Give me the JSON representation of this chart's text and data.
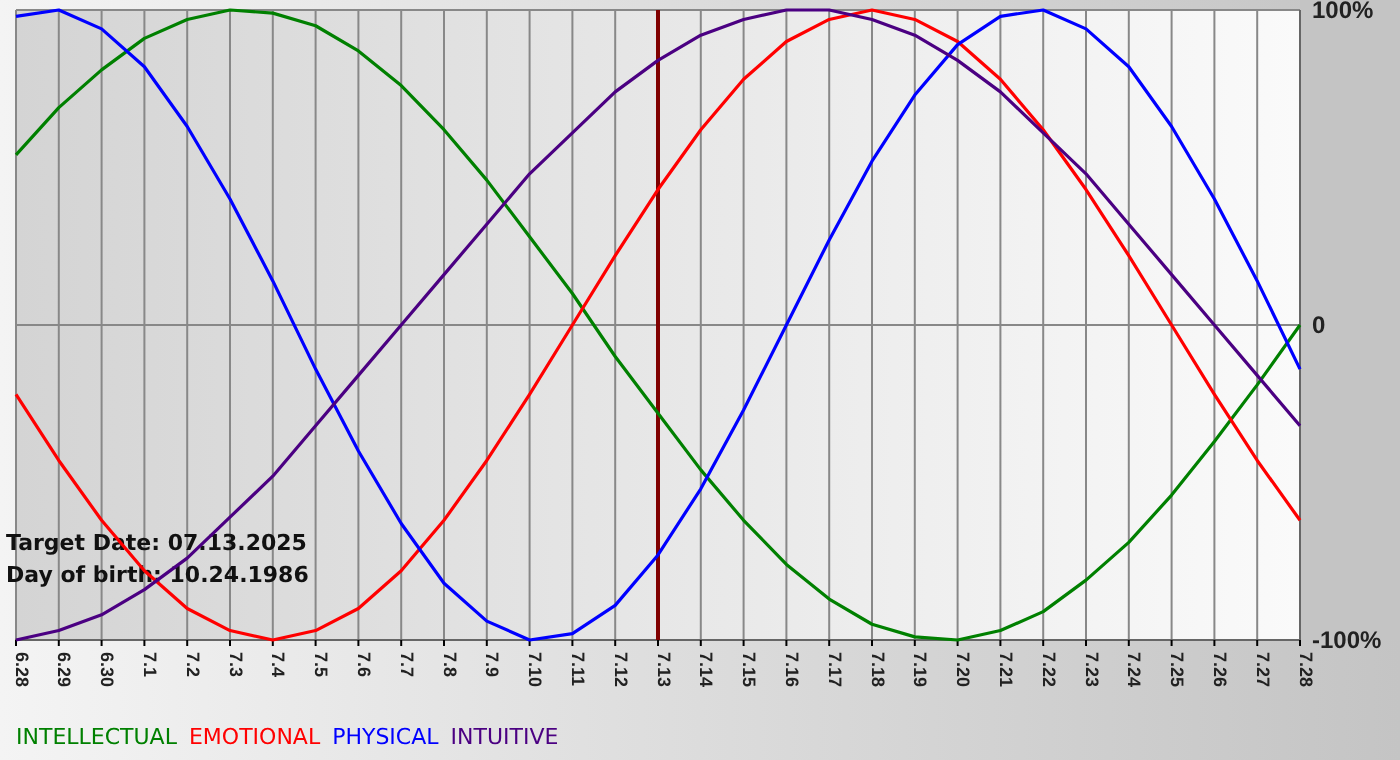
{
  "chart_data": {
    "type": "line",
    "categories": [
      "6.28",
      "6.29",
      "6.30",
      "7.1",
      "7.2",
      "7.3",
      "7.4",
      "7.5",
      "7.6",
      "7.7",
      "7.8",
      "7.9",
      "7.10",
      "7.11",
      "7.12",
      "7.13",
      "7.14",
      "7.15",
      "7.16",
      "7.17",
      "7.18",
      "7.19",
      "7.20",
      "7.21",
      "7.22",
      "7.23",
      "7.24",
      "7.25",
      "7.26",
      "7.27",
      "7.28"
    ],
    "series": [
      {
        "name": "INTELLECTUAL",
        "color": "#008000",
        "values": [
          54,
          69,
          81,
          91,
          97,
          100,
          99,
          95,
          87,
          76,
          62,
          46,
          28,
          10,
          -10,
          -28,
          -46,
          -62,
          -76,
          -87,
          -95,
          -99,
          -100,
          -97,
          -91,
          -81,
          -69,
          -54,
          -37,
          -19,
          0
        ]
      },
      {
        "name": "EMOTIONAL",
        "color": "#ff0000",
        "values": [
          -22,
          -43,
          -62,
          -78,
          -90,
          -97,
          -100,
          -97,
          -90,
          -78,
          -62,
          -43,
          -22,
          0,
          22,
          43,
          62,
          78,
          90,
          97,
          100,
          97,
          90,
          78,
          62,
          43,
          22,
          0,
          -22,
          -43,
          -62
        ]
      },
      {
        "name": "PHYSICAL",
        "color": "#0000ff",
        "values": [
          98,
          100,
          94,
          82,
          63,
          40,
          14,
          -14,
          -40,
          -63,
          -82,
          -94,
          -100,
          -98,
          -89,
          -73,
          -52,
          -27,
          0,
          27,
          52,
          73,
          89,
          98,
          100,
          94,
          82,
          63,
          40,
          14,
          -14
        ]
      },
      {
        "name": "INTUITIVE",
        "color": "#4b0082",
        "values": [
          -100,
          -97,
          -92,
          -84,
          -74,
          -61,
          -48,
          -32,
          -16,
          0,
          16,
          32,
          48,
          61,
          74,
          84,
          92,
          97,
          100,
          100,
          97,
          92,
          84,
          74,
          61,
          48,
          32,
          16,
          0,
          -16,
          -32
        ]
      }
    ],
    "ylim": [
      -100,
      100
    ],
    "yticks": [
      {
        "value": 100,
        "label": "100%"
      },
      0,
      {
        "value": -100,
        "label": "-100%"
      }
    ],
    "grid": true,
    "legend": "bottom",
    "marker": "none",
    "line_style": "solid",
    "ref_lines": [
      {
        "axis": "x",
        "value": "7.13",
        "color": "#800000"
      }
    ],
    "annotations": [
      "Target Date: 07.13.2025",
      "Day of birth: 10.24.1986"
    ]
  }
}
